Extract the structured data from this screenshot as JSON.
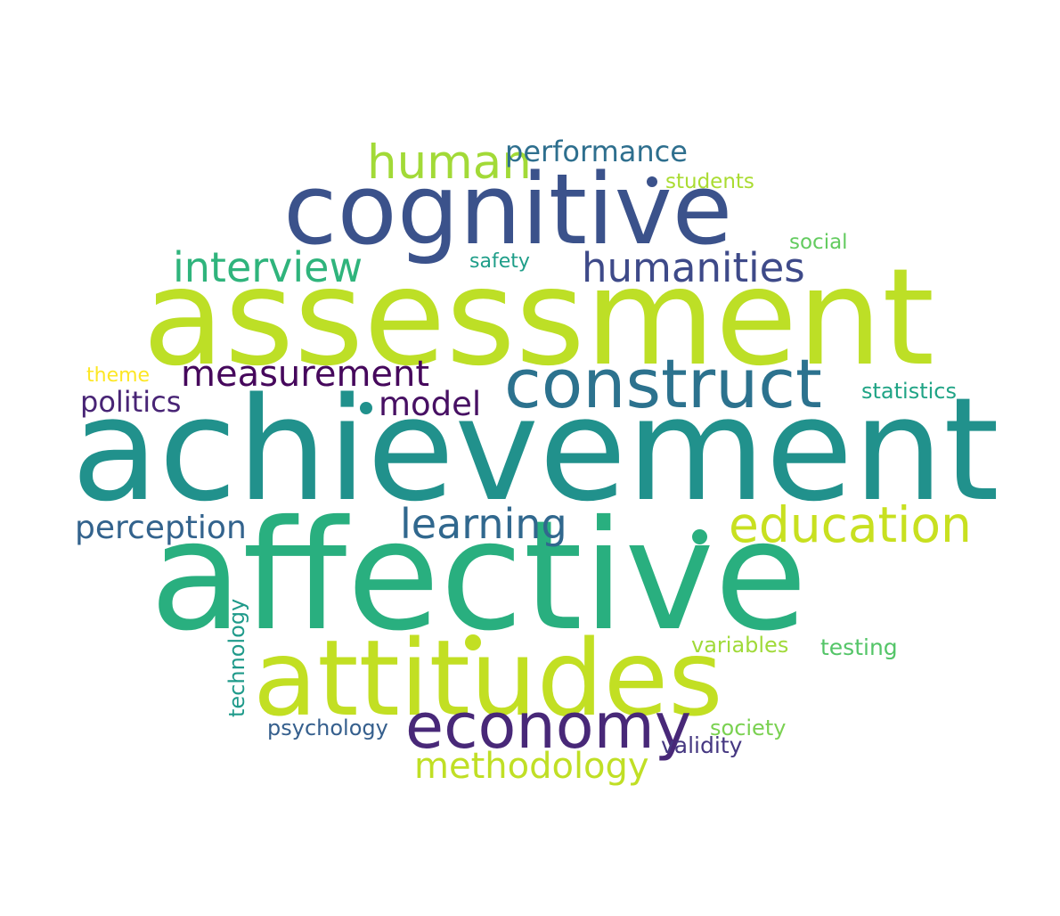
{
  "words": [
    {
      "text": "achievement",
      "color": "#21918c"
    },
    {
      "text": "affective",
      "color": "#29af7f"
    },
    {
      "text": "assessment",
      "color": "#bddf26"
    },
    {
      "text": "cognitive",
      "color": "#3b528b"
    },
    {
      "text": "attitudes",
      "color": "#c2df23"
    },
    {
      "text": "construct",
      "color": "#2c728e"
    },
    {
      "text": "economy",
      "color": "#482878"
    },
    {
      "text": "education",
      "color": "#c8e020"
    },
    {
      "text": "human",
      "color": "#a2da37"
    },
    {
      "text": "humanities",
      "color": "#3e4a89"
    },
    {
      "text": "interview",
      "color": "#2fb47c"
    },
    {
      "text": "learning",
      "color": "#31688e"
    },
    {
      "text": "measurement",
      "color": "#46085c"
    },
    {
      "text": "methodology",
      "color": "#c0df25"
    },
    {
      "text": "model",
      "color": "#471063"
    },
    {
      "text": "perception",
      "color": "#33638d"
    },
    {
      "text": "performance",
      "color": "#2e6f8e"
    },
    {
      "text": "politics",
      "color": "#482475"
    },
    {
      "text": "psychology",
      "color": "#355f8d"
    },
    {
      "text": "society",
      "color": "#7ad151"
    },
    {
      "text": "validity",
      "color": "#453781"
    },
    {
      "text": "variables",
      "color": "#a0da39"
    },
    {
      "text": "testing",
      "color": "#54c568"
    },
    {
      "text": "statistics",
      "color": "#20a486"
    },
    {
      "text": "students",
      "color": "#aadc32"
    },
    {
      "text": "social",
      "color": "#63cb5f"
    },
    {
      "text": "safety",
      "color": "#1f9e89"
    },
    {
      "text": "theme",
      "color": "#fde725"
    },
    {
      "text": "technology",
      "color": "#1f9a8a"
    }
  ]
}
